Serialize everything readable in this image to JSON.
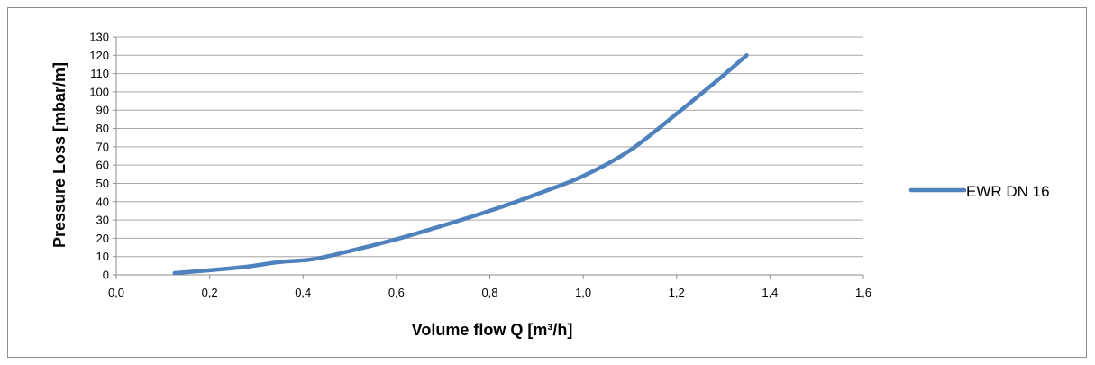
{
  "chart_data": {
    "type": "line",
    "title": "",
    "xlabel": "Volume flow Q [m³/h]",
    "ylabel": "Pressure Loss [mbar/m]",
    "xlim": [
      0,
      1.6
    ],
    "ylim": [
      0,
      130
    ],
    "x_ticks": [
      "0,0",
      "0,2",
      "0,4",
      "0,6",
      "0,8",
      "1,0",
      "1,2",
      "1,4",
      "1,6"
    ],
    "y_ticks": [
      "0",
      "10",
      "20",
      "30",
      "40",
      "50",
      "60",
      "70",
      "80",
      "90",
      "100",
      "110",
      "120",
      "130"
    ],
    "grid": "horizontal",
    "legend_position": "right",
    "series": [
      {
        "name": "EWR DN 16",
        "color": "#4f81bd",
        "x": [
          0.125,
          0.2,
          0.28,
          0.35,
          0.42,
          0.5,
          0.6,
          0.7,
          0.8,
          0.9,
          1.0,
          1.1,
          1.2,
          1.3,
          1.35
        ],
        "y": [
          1,
          2.5,
          4.5,
          7,
          8.5,
          13,
          19.5,
          27,
          35,
          44,
          54,
          68,
          88,
          109,
          120
        ]
      }
    ]
  }
}
